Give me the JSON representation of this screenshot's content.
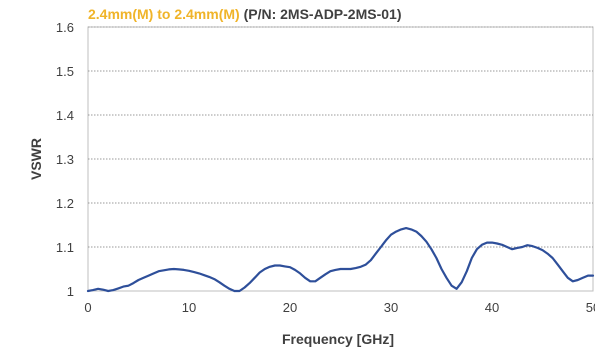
{
  "chart_data": {
    "type": "line",
    "title": {
      "highlight": "2.4mm(M) to 2.4mm(M)",
      "rest": "(P/N: 2MS-ADP-2MS-01)"
    },
    "xlabel": "Frequency [GHz]",
    "ylabel": "VSWR",
    "xlim": [
      0,
      50
    ],
    "ylim": [
      1,
      1.6
    ],
    "x_ticks": [
      0,
      10,
      20,
      30,
      40,
      50
    ],
    "y_ticks": [
      1,
      1.1,
      1.2,
      1.3,
      1.4,
      1.5,
      1.6
    ],
    "x_tick_labels": [
      "0",
      "10",
      "20",
      "30",
      "40",
      "50"
    ],
    "y_tick_labels": [
      "1",
      "1.1",
      "1.2",
      "1.3",
      "1.4",
      "1.5",
      "1.6"
    ],
    "grid": "horizontal-dotted",
    "colors": {
      "title_highlight": "#f0b429",
      "title_rest": "#404040",
      "line": "#2e4f9a",
      "grid": "#9a9a9a",
      "axis": "#bfbfbf"
    },
    "series": [
      {
        "x": [
          0,
          0.5,
          1,
          1.5,
          2,
          2.5,
          3,
          3.5,
          4,
          4.5,
          5,
          5.5,
          6,
          6.5,
          7,
          7.5,
          8,
          8.5,
          9,
          9.5,
          10,
          10.5,
          11,
          11.5,
          12,
          12.5,
          13,
          13.5,
          14,
          14.5,
          15,
          15.5,
          16,
          16.5,
          17,
          17.5,
          18,
          18.5,
          19,
          19.5,
          20,
          20.5,
          21,
          21.5,
          22,
          22.5,
          23,
          23.5,
          24,
          24.5,
          25,
          25.5,
          26,
          26.5,
          27,
          27.5,
          28,
          28.5,
          29,
          29.5,
          30,
          30.5,
          31,
          31.5,
          32,
          32.5,
          33,
          33.5,
          34,
          34.5,
          35,
          35.5,
          36,
          36.5,
          37,
          37.5,
          38,
          38.5,
          39,
          39.5,
          40,
          40.5,
          41,
          41.5,
          42,
          42.5,
          43,
          43.5,
          44,
          44.5,
          45,
          45.5,
          46,
          46.5,
          47,
          47.5,
          48,
          48.5,
          49,
          49.5,
          50
        ],
        "values": [
          1.0,
          1.002,
          1.005,
          1.003,
          1.0,
          1.002,
          1.006,
          1.01,
          1.012,
          1.018,
          1.025,
          1.03,
          1.035,
          1.04,
          1.045,
          1.047,
          1.049,
          1.05,
          1.049,
          1.048,
          1.046,
          1.043,
          1.04,
          1.036,
          1.032,
          1.027,
          1.02,
          1.012,
          1.005,
          1.0,
          1.0,
          1.008,
          1.018,
          1.03,
          1.042,
          1.05,
          1.055,
          1.058,
          1.058,
          1.056,
          1.054,
          1.048,
          1.04,
          1.03,
          1.022,
          1.022,
          1.03,
          1.038,
          1.045,
          1.048,
          1.05,
          1.05,
          1.05,
          1.052,
          1.055,
          1.06,
          1.07,
          1.085,
          1.1,
          1.115,
          1.128,
          1.135,
          1.14,
          1.143,
          1.14,
          1.135,
          1.125,
          1.112,
          1.095,
          1.075,
          1.05,
          1.03,
          1.012,
          1.005,
          1.02,
          1.045,
          1.075,
          1.095,
          1.105,
          1.11,
          1.11,
          1.108,
          1.105,
          1.1,
          1.095,
          1.098,
          1.1,
          1.104,
          1.102,
          1.098,
          1.093,
          1.085,
          1.075,
          1.06,
          1.045,
          1.03,
          1.022,
          1.025,
          1.03,
          1.035,
          1.035
        ]
      }
    ]
  }
}
